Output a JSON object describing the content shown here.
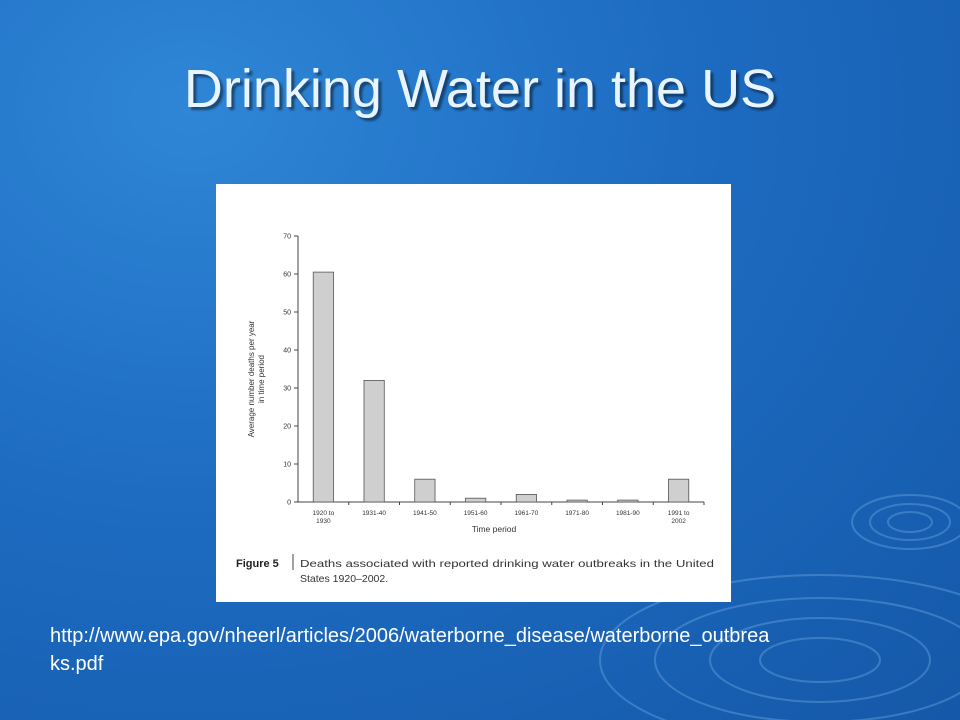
{
  "slide": {
    "title": "Drinking Water in the US",
    "source_url_line1": "http://www.epa.gov/nheerl/articles/2006/waterborne_disease/waterborne_outbrea",
    "source_url_line2": "ks.pdf"
  },
  "figure": {
    "label": "Figure 5",
    "caption_line1": "Deaths associated with reported drinking water outbreaks in the United",
    "caption_line2": "States 1920–2002."
  },
  "chart_data": {
    "type": "bar",
    "categories": [
      [
        "1920 to",
        "1930"
      ],
      [
        "1931-40"
      ],
      [
        "1941-50"
      ],
      [
        "1951-60"
      ],
      [
        "1961-70"
      ],
      [
        "1971-80"
      ],
      [
        "1981-90"
      ],
      [
        "1991 to",
        "2002"
      ]
    ],
    "values": [
      60.5,
      32,
      6,
      1,
      2,
      0.5,
      0.5,
      6
    ],
    "xlabel": "Time period",
    "ylabel_line1": "Average number deaths per year",
    "ylabel_line2": "in time period",
    "ylim": [
      0,
      70
    ],
    "yticks": [
      0,
      10,
      20,
      30,
      40,
      50,
      60,
      70
    ],
    "grid": false,
    "colors": {
      "bar_fill": "#cfcfcf",
      "bar_stroke": "#555555",
      "axis": "#444444"
    }
  }
}
